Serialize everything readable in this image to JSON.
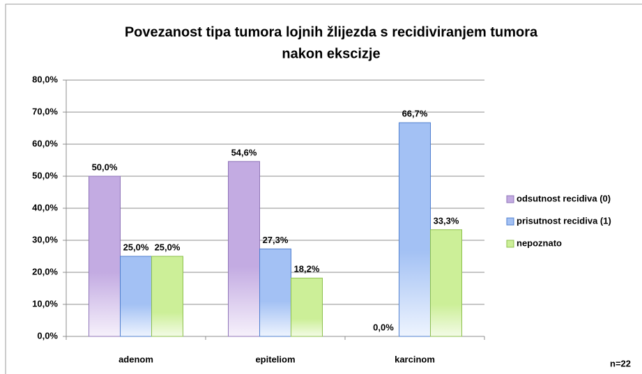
{
  "chart_data": {
    "type": "bar",
    "title": [
      "Povezanost tipa tumora lojnih žlijezda s recidiviranjem tumora",
      "nakon ekscizje"
    ],
    "categories": [
      "adenom",
      "epiteliom",
      "karcinom"
    ],
    "series": [
      {
        "name": "odsutnost recidiva (0)",
        "color": "#c3abe2",
        "values": [
          50.0,
          54.6,
          0.0
        ],
        "value_labels": [
          "50,0%",
          "54,6%",
          "0,0%"
        ]
      },
      {
        "name": "prisutnost recidiva (1)",
        "color": "#a3c1f4",
        "values": [
          25.0,
          27.3,
          66.7
        ],
        "value_labels": [
          "25,0%",
          "27,3%",
          "66,7%"
        ]
      },
      {
        "name": "nepoznato",
        "color": "#ccef98",
        "values": [
          25.0,
          18.2,
          33.3
        ],
        "value_labels": [
          "25,0%",
          "18,2%",
          "33,3%"
        ]
      }
    ],
    "ylim": [
      0,
      80
    ],
    "yticks": [
      {
        "value": 0,
        "label": "0,0%"
      },
      {
        "value": 10,
        "label": "10,0%"
      },
      {
        "value": 20,
        "label": "20,0%"
      },
      {
        "value": 30,
        "label": "30,0%"
      },
      {
        "value": 40,
        "label": "40,0%"
      },
      {
        "value": 50,
        "label": "50,0%"
      },
      {
        "value": 60,
        "label": "60,0%"
      },
      {
        "value": 70,
        "label": "70,0%"
      },
      {
        "value": 80,
        "label": "80,0%"
      }
    ],
    "grid": true,
    "legend": "right",
    "annotation": "n=22"
  }
}
